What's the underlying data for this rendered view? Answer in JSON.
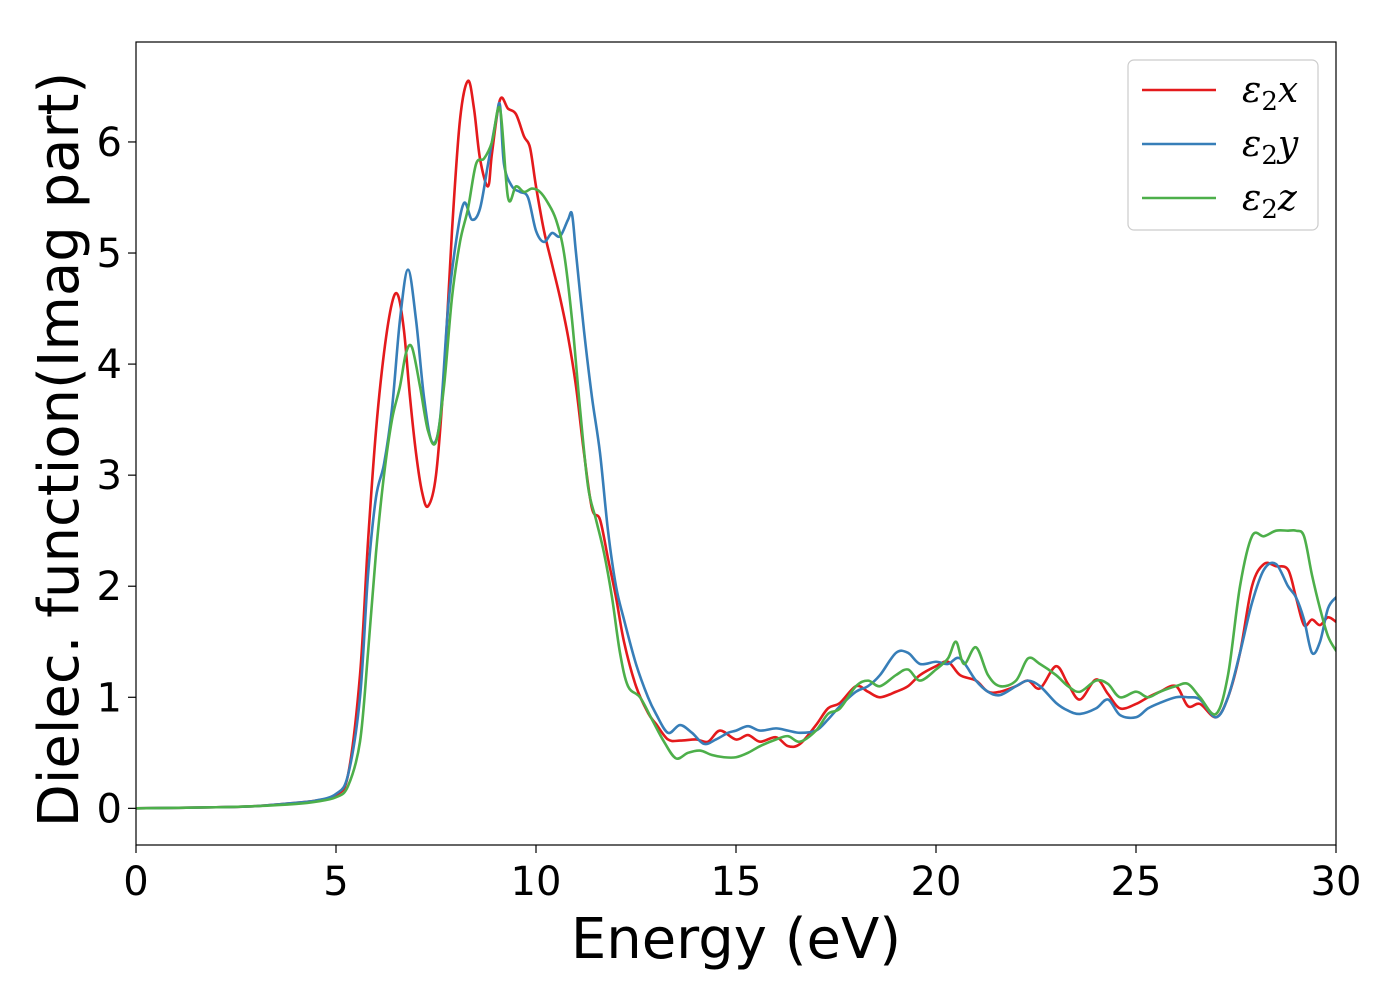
{
  "chart_data": {
    "type": "line",
    "title": "",
    "xlabel": "Energy (eV)",
    "ylabel": "Dielec. function(Imag part)",
    "xlim": [
      0,
      30
    ],
    "ylim": [
      -0.33,
      6.9
    ],
    "xticks": [
      0,
      5,
      10,
      15,
      20,
      25,
      30
    ],
    "yticks": [
      0,
      1,
      2,
      3,
      4,
      5,
      6
    ],
    "grid": false,
    "legend_position": "top-right",
    "series": [
      {
        "name": "ε₂x",
        "legend_main": "ε",
        "legend_sub": "2",
        "legend_var": "x",
        "color": "#e41a1c",
        "x": [
          0,
          2,
          3,
          4,
          4.5,
          5,
          5.3,
          5.6,
          5.8,
          6.0,
          6.2,
          6.4,
          6.55,
          6.7,
          6.85,
          7.0,
          7.15,
          7.3,
          7.5,
          7.7,
          7.9,
          8.1,
          8.3,
          8.45,
          8.6,
          8.8,
          8.9,
          9.1,
          9.3,
          9.5,
          9.7,
          9.85,
          10.0,
          10.2,
          10.4,
          10.6,
          10.8,
          11.0,
          11.2,
          11.4,
          11.6,
          11.8,
          12.0,
          12.2,
          12.5,
          12.8,
          13.0,
          13.3,
          13.6,
          14.0,
          14.3,
          14.6,
          15.0,
          15.3,
          15.6,
          16.0,
          16.3,
          16.6,
          17.0,
          17.3,
          17.6,
          18.0,
          18.3,
          18.6,
          19.0,
          19.3,
          19.6,
          20.0,
          20.3,
          20.6,
          21.0,
          21.3,
          21.6,
          22.0,
          22.3,
          22.6,
          23.0,
          23.3,
          23.6,
          24.0,
          24.3,
          24.6,
          25.0,
          25.3,
          25.6,
          26.0,
          26.3,
          26.6,
          27.0,
          27.3,
          27.6,
          27.9,
          28.2,
          28.5,
          28.8,
          29.0,
          29.2,
          29.4,
          29.6,
          29.8,
          30.0
        ],
        "y": [
          0,
          0.01,
          0.02,
          0.05,
          0.07,
          0.12,
          0.3,
          1.2,
          2.4,
          3.4,
          4.1,
          4.55,
          4.62,
          4.3,
          3.7,
          3.2,
          2.85,
          2.72,
          3.0,
          3.9,
          5.2,
          6.2,
          6.55,
          6.3,
          5.85,
          5.6,
          5.9,
          6.38,
          6.3,
          6.25,
          6.05,
          5.95,
          5.6,
          5.2,
          4.9,
          4.6,
          4.25,
          3.8,
          3.2,
          2.7,
          2.6,
          2.25,
          1.9,
          1.5,
          1.1,
          0.86,
          0.76,
          0.62,
          0.61,
          0.62,
          0.6,
          0.7,
          0.62,
          0.66,
          0.6,
          0.64,
          0.56,
          0.58,
          0.75,
          0.9,
          0.95,
          1.1,
          1.05,
          1.0,
          1.05,
          1.1,
          1.2,
          1.28,
          1.32,
          1.2,
          1.15,
          1.05,
          1.05,
          1.1,
          1.15,
          1.08,
          1.28,
          1.12,
          0.98,
          1.16,
          1.03,
          0.9,
          0.94,
          1.0,
          1.05,
          1.1,
          0.92,
          0.94,
          0.82,
          1.0,
          1.4,
          2.0,
          2.2,
          2.18,
          2.15,
          1.9,
          1.65,
          1.7,
          1.65,
          1.72,
          1.68
        ]
      },
      {
        "name": "ε₂y",
        "legend_main": "ε",
        "legend_sub": "2",
        "legend_var": "y",
        "color": "#377eb8",
        "x": [
          0,
          2,
          3,
          4,
          4.5,
          5,
          5.3,
          5.6,
          5.8,
          6.0,
          6.2,
          6.4,
          6.6,
          6.8,
          7.0,
          7.2,
          7.4,
          7.6,
          7.8,
          8.0,
          8.2,
          8.4,
          8.6,
          8.8,
          9.0,
          9.1,
          9.2,
          9.4,
          9.6,
          9.8,
          10.0,
          10.2,
          10.4,
          10.6,
          10.8,
          10.9,
          11.0,
          11.2,
          11.4,
          11.6,
          11.8,
          12.0,
          12.2,
          12.5,
          12.8,
          13.0,
          13.3,
          13.6,
          13.9,
          14.2,
          14.5,
          14.8,
          15.0,
          15.3,
          15.6,
          16.0,
          16.3,
          16.6,
          17.0,
          17.3,
          17.6,
          18.0,
          18.3,
          18.6,
          19.0,
          19.3,
          19.6,
          20.0,
          20.3,
          20.6,
          21.0,
          21.3,
          21.6,
          22.0,
          22.3,
          22.6,
          23.0,
          23.3,
          23.6,
          24.0,
          24.3,
          24.6,
          25.0,
          25.3,
          25.6,
          26.0,
          26.3,
          26.6,
          27.0,
          27.3,
          27.6,
          27.9,
          28.2,
          28.5,
          28.8,
          29.0,
          29.2,
          29.4,
          29.6,
          29.8,
          30.0
        ],
        "y": [
          0,
          0.01,
          0.02,
          0.05,
          0.07,
          0.13,
          0.3,
          1.0,
          2.1,
          2.8,
          3.1,
          3.6,
          4.4,
          4.85,
          4.4,
          3.7,
          3.3,
          3.5,
          4.5,
          5.1,
          5.45,
          5.3,
          5.4,
          5.8,
          6.2,
          6.33,
          5.8,
          5.6,
          5.55,
          5.5,
          5.2,
          5.1,
          5.18,
          5.15,
          5.3,
          5.35,
          5.0,
          4.3,
          3.7,
          3.2,
          2.5,
          2.0,
          1.7,
          1.3,
          1.0,
          0.85,
          0.68,
          0.75,
          0.68,
          0.58,
          0.62,
          0.68,
          0.7,
          0.74,
          0.7,
          0.72,
          0.7,
          0.68,
          0.7,
          0.8,
          0.92,
          1.05,
          1.1,
          1.2,
          1.4,
          1.4,
          1.3,
          1.32,
          1.3,
          1.35,
          1.15,
          1.05,
          1.02,
          1.1,
          1.15,
          1.1,
          0.95,
          0.88,
          0.85,
          0.9,
          0.98,
          0.84,
          0.82,
          0.9,
          0.95,
          1.0,
          1.0,
          0.98,
          0.82,
          1.0,
          1.4,
          1.85,
          2.15,
          2.2,
          2.0,
          1.9,
          1.7,
          1.4,
          1.5,
          1.8,
          1.9
        ]
      },
      {
        "name": "ε₂z",
        "legend_main": "ε",
        "legend_sub": "2",
        "legend_var": "z",
        "color": "#4daf4a",
        "x": [
          0,
          2,
          3,
          4,
          4.5,
          5,
          5.3,
          5.6,
          5.8,
          6.0,
          6.2,
          6.4,
          6.6,
          6.75,
          6.9,
          7.1,
          7.3,
          7.5,
          7.7,
          7.9,
          8.1,
          8.3,
          8.5,
          8.7,
          8.9,
          9.1,
          9.3,
          9.5,
          9.7,
          9.9,
          10.1,
          10.3,
          10.5,
          10.7,
          10.9,
          11.1,
          11.3,
          11.5,
          11.7,
          11.9,
          12.1,
          12.3,
          12.6,
          12.9,
          13.2,
          13.5,
          13.8,
          14.1,
          14.4,
          14.7,
          15.0,
          15.3,
          15.6,
          16.0,
          16.3,
          16.6,
          17.0,
          17.3,
          17.6,
          18.0,
          18.3,
          18.6,
          19.0,
          19.3,
          19.6,
          20.0,
          20.3,
          20.5,
          20.7,
          21.0,
          21.3,
          21.6,
          22.0,
          22.3,
          22.6,
          23.0,
          23.3,
          23.6,
          24.0,
          24.3,
          24.6,
          25.0,
          25.3,
          25.6,
          26.0,
          26.3,
          26.6,
          27.0,
          27.3,
          27.6,
          27.9,
          28.2,
          28.5,
          28.8,
          29.0,
          29.2,
          29.4,
          29.6,
          29.8,
          30.0
        ],
        "y": [
          0,
          0.01,
          0.02,
          0.04,
          0.06,
          0.1,
          0.2,
          0.6,
          1.4,
          2.3,
          3.0,
          3.5,
          3.8,
          4.1,
          4.15,
          3.8,
          3.4,
          3.3,
          3.8,
          4.6,
          5.1,
          5.4,
          5.8,
          5.85,
          6.0,
          6.3,
          5.5,
          5.6,
          5.55,
          5.58,
          5.55,
          5.45,
          5.3,
          5.0,
          4.4,
          3.6,
          2.9,
          2.6,
          2.3,
          1.9,
          1.4,
          1.1,
          1.0,
          0.8,
          0.6,
          0.45,
          0.5,
          0.52,
          0.48,
          0.46,
          0.46,
          0.5,
          0.56,
          0.62,
          0.65,
          0.6,
          0.7,
          0.85,
          0.9,
          1.1,
          1.15,
          1.1,
          1.2,
          1.25,
          1.15,
          1.25,
          1.35,
          1.5,
          1.3,
          1.45,
          1.2,
          1.1,
          1.15,
          1.35,
          1.3,
          1.2,
          1.1,
          1.05,
          1.15,
          1.12,
          1.0,
          1.05,
          1.0,
          1.05,
          1.1,
          1.12,
          1.0,
          0.85,
          1.2,
          2.0,
          2.45,
          2.45,
          2.5,
          2.5,
          2.5,
          2.45,
          2.1,
          1.8,
          1.55,
          1.42
        ]
      }
    ]
  }
}
